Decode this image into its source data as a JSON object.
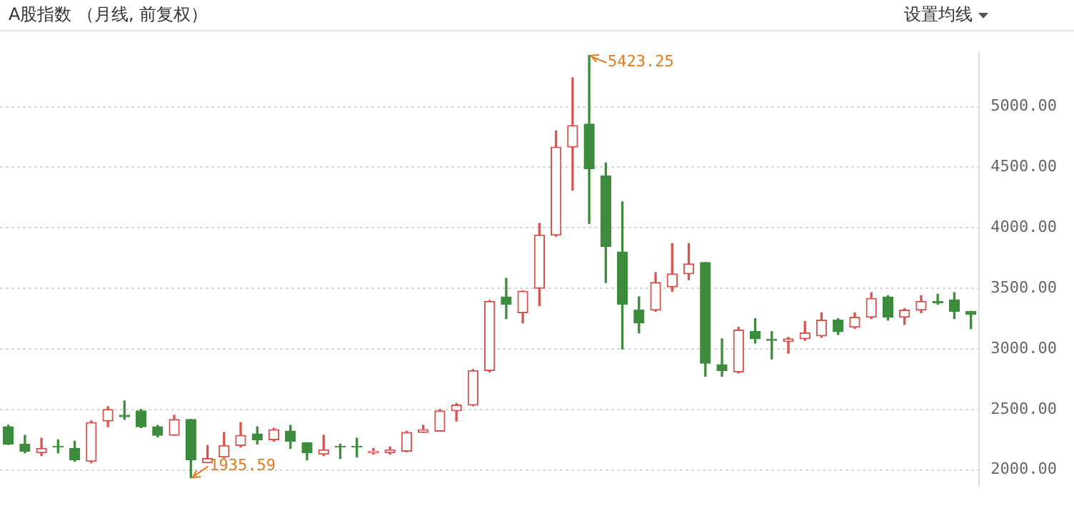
{
  "chart_data": {
    "type": "candlestick",
    "title": "A股指数 （月线, 前复权）",
    "annotations": [
      "5423.25",
      "1935.59",
      "设置均线"
    ],
    "categories": [
      null,
      null,
      null,
      null,
      null,
      null,
      null,
      null,
      null,
      null,
      null,
      null,
      null,
      null,
      null,
      null,
      null,
      null,
      null,
      null,
      null,
      null,
      null,
      null,
      null,
      null,
      null,
      null,
      null,
      null,
      null,
      null,
      null,
      null,
      null,
      null,
      null,
      null,
      null,
      null,
      null,
      null,
      null,
      null,
      null,
      null,
      null,
      null,
      null,
      null,
      null,
      null,
      null,
      null,
      null,
      null,
      null,
      null,
      null
    ],
    "ohlc": [
      [
        2357,
        2370,
        2210,
        2214
      ],
      [
        2214,
        2286,
        2143,
        2155
      ],
      [
        2143,
        2262,
        2119,
        2179
      ],
      [
        2195,
        2250,
        2143,
        2190
      ],
      [
        2179,
        2238,
        2071,
        2083
      ],
      [
        2071,
        2405,
        2060,
        2393
      ],
      [
        2405,
        2524,
        2357,
        2500
      ],
      [
        2452,
        2571,
        2417,
        2440
      ],
      [
        2488,
        2500,
        2350,
        2357
      ],
      [
        2357,
        2369,
        2274,
        2286
      ],
      [
        2286,
        2452,
        2286,
        2417
      ],
      [
        2417,
        2417,
        1935.59,
        2083
      ],
      [
        2060,
        2202,
        2060,
        2095
      ],
      [
        2107,
        2310,
        2100,
        2202
      ],
      [
        2202,
        2393,
        2190,
        2286
      ],
      [
        2298,
        2357,
        2214,
        2250
      ],
      [
        2250,
        2345,
        2238,
        2333
      ],
      [
        2321,
        2369,
        2179,
        2238
      ],
      [
        2226,
        2226,
        2083,
        2143
      ],
      [
        2131,
        2286,
        2119,
        2167
      ],
      [
        2195,
        2214,
        2095,
        2190
      ],
      [
        2195,
        2262,
        2107,
        2190
      ],
      [
        2143,
        2179,
        2131,
        2155
      ],
      [
        2143,
        2190,
        2131,
        2167
      ],
      [
        2155,
        2320,
        2150,
        2310
      ],
      [
        2310,
        2369,
        2310,
        2333
      ],
      [
        2321,
        2500,
        2321,
        2488
      ],
      [
        2488,
        2550,
        2405,
        2536
      ],
      [
        2536,
        2830,
        2530,
        2821
      ],
      [
        2821,
        3400,
        2810,
        3393
      ],
      [
        3430,
        3583,
        3250,
        3369
      ],
      [
        3298,
        3480,
        3214,
        3476
      ],
      [
        3500,
        4036,
        3357,
        3940
      ],
      [
        3940,
        4800,
        3930,
        4667
      ],
      [
        4667,
        5238,
        4310,
        4845
      ],
      [
        4857,
        5423.25,
        4036,
        4488
      ],
      [
        4430,
        4536,
        3548,
        3845
      ],
      [
        3800,
        4214,
        3000,
        3369
      ],
      [
        3321,
        3430,
        3131,
        3214
      ],
      [
        3321,
        3630,
        3310,
        3548
      ],
      [
        3512,
        3870,
        3476,
        3619
      ],
      [
        3619,
        3870,
        3571,
        3702
      ],
      [
        3714,
        3714,
        2774,
        2881
      ],
      [
        2869,
        3083,
        2774,
        2821
      ],
      [
        2810,
        3179,
        2800,
        3155
      ],
      [
        3143,
        3250,
        3048,
        3083
      ],
      [
        3080,
        3143,
        2917,
        3071
      ],
      [
        3060,
        3095,
        2964,
        3083
      ],
      [
        3083,
        3226,
        3071,
        3131
      ],
      [
        3107,
        3298,
        3095,
        3238
      ],
      [
        3238,
        3250,
        3119,
        3143
      ],
      [
        3179,
        3298,
        3170,
        3262
      ],
      [
        3262,
        3464,
        3250,
        3417
      ],
      [
        3430,
        3440,
        3238,
        3262
      ],
      [
        3262,
        3333,
        3202,
        3321
      ],
      [
        3321,
        3440,
        3298,
        3393
      ],
      [
        3393,
        3452,
        3369,
        3381
      ],
      [
        3405,
        3464,
        3250,
        3310
      ],
      [
        3310,
        3310,
        3167,
        3286
      ]
    ],
    "colors": [
      "#3d8b3d",
      "#3d8b3d",
      "#d9534f",
      "#3d8b3d",
      "#3d8b3d",
      "#d9534f",
      "#d9534f",
      "#3d8b3d",
      "#3d8b3d",
      "#3d8b3d",
      "#d9534f",
      "#3d8b3d",
      "#d9534f",
      "#d9534f",
      "#d9534f",
      "#3d8b3d",
      "#d9534f",
      "#3d8b3d",
      "#3d8b3d",
      "#d9534f",
      "#3d8b3d",
      "#3d8b3d",
      "#d9534f",
      "#d9534f",
      "#d9534f",
      "#d9534f",
      "#d9534f",
      "#d9534f",
      "#d9534f",
      "#d9534f",
      "#3d8b3d",
      "#d9534f",
      "#d9534f",
      "#d9534f",
      "#d9534f",
      "#3d8b3d",
      "#3d8b3d",
      "#3d8b3d",
      "#3d8b3d",
      "#d9534f",
      "#d9534f",
      "#d9534f",
      "#3d8b3d",
      "#3d8b3d",
      "#d9534f",
      "#3d8b3d",
      "#3d8b3d",
      "#d9534f",
      "#d9534f",
      "#d9534f",
      "#3d8b3d",
      "#d9534f",
      "#d9534f",
      "#3d8b3d",
      "#d9534f",
      "#d9534f",
      "#3d8b3d",
      "#3d8b3d",
      "#3d8b3d"
    ],
    "ylim": [
      1870,
      5450
    ],
    "yticks": [
      {
        "value": 2000,
        "label": "2000.00"
      },
      {
        "value": 2500,
        "label": "2500.00"
      },
      {
        "value": 3000,
        "label": "3000.00"
      },
      {
        "value": 3500,
        "label": "3500.00"
      },
      {
        "value": 4000,
        "label": "4000.00"
      },
      {
        "value": 4500,
        "label": "4500.00"
      },
      {
        "value": 5000,
        "label": "5000.00"
      }
    ],
    "grid": "y",
    "tick_labels": "y",
    "legend": false
  }
}
